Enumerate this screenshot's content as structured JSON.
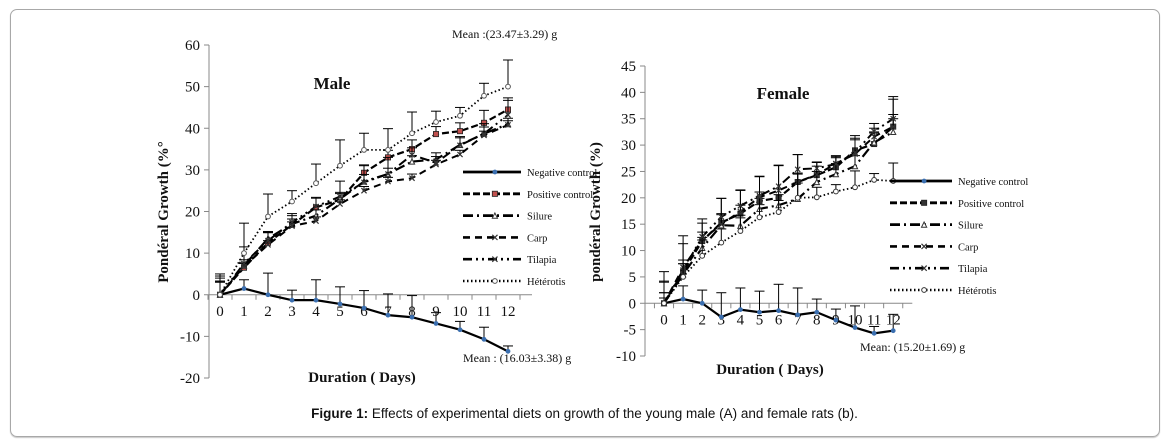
{
  "figure": {
    "caption_label": "Figure 1:",
    "caption_text": " Effects of experimental diets on growth of the young male (A) and female rats (b)."
  },
  "chart_data": [
    {
      "type": "line",
      "title": "Male",
      "xlabel": "Duration ( Days)",
      "ylabel": "Pondéral Growth  (%°",
      "x": [
        0,
        1,
        2,
        3,
        4,
        5,
        6,
        7,
        8,
        9,
        10,
        11,
        12
      ],
      "xticks": [
        "0",
        "1",
        "2",
        "3",
        "4",
        "5",
        "6",
        "7",
        "8",
        "9",
        "10",
        "11",
        "12"
      ],
      "ylim": [
        -20,
        60
      ],
      "yticks": [
        "60",
        "50",
        "40",
        "30",
        "20",
        "10",
        "0",
        "-10",
        "-20"
      ],
      "ytick_values": [
        60,
        50,
        40,
        30,
        20,
        10,
        0,
        -10,
        -20
      ],
      "legend_position": "right",
      "annotations": [
        "Mean :(23.47±3.29) g",
        "Mean : (16.03±3.38) g"
      ],
      "series": [
        {
          "name": "Negative control",
          "marker_color": "#3b6fb0",
          "values": [
            0,
            1.5,
            0,
            -1.3,
            -1.3,
            -2.2,
            -3.2,
            -4.9,
            -5.4,
            -6.9,
            -8.4,
            -10.7,
            -13.6
          ],
          "errors": [
            5,
            2.1,
            5.2,
            2.4,
            4.9,
            4.1,
            4.2,
            5.1,
            5.2,
            2.6,
            2,
            2.9,
            1.3
          ]
        },
        {
          "name": "Positive control",
          "marker_color": "#c0504d",
          "values": [
            0,
            6.5,
            12.5,
            16.8,
            21,
            22.8,
            29.3,
            33,
            35,
            38.6,
            39.3,
            41.3,
            44.5
          ],
          "errors": [
            4.5,
            1,
            2.5,
            2.2,
            2.2,
            1.8,
            1.9,
            1.7,
            2.2,
            1.8,
            2,
            3,
            2.2
          ]
        },
        {
          "name": "Silure",
          "marker_color": "#333333",
          "values": [
            0,
            7,
            13.5,
            17,
            19,
            23,
            27.2,
            29,
            32,
            32.5,
            36,
            38.7,
            41
          ],
          "errors": [
            3.2,
            1.4,
            1.4,
            1.2,
            1.4,
            1.3,
            1.7,
            1.4,
            1.4,
            1.6,
            1.7,
            1.6,
            1.4
          ]
        },
        {
          "name": "Carp",
          "marker_color": "#333333",
          "values": [
            0,
            6.8,
            12,
            16.5,
            17.7,
            21.8,
            25,
            27.2,
            28,
            31.3,
            33.7,
            38.3,
            40.8
          ],
          "errors": [
            3.3,
            1,
            1,
            1,
            1,
            1,
            1,
            1,
            1,
            1,
            1,
            1,
            1
          ]
        },
        {
          "name": "Tilapia",
          "marker_color": "#333333",
          "values": [
            0,
            7.5,
            13,
            17.4,
            21.2,
            23.6,
            27,
            29,
            33.6,
            31.7,
            35.9,
            38.7,
            43.2
          ],
          "errors": [
            4,
            4,
            2.2,
            2.1,
            2.2,
            3.7,
            4,
            4,
            1.7,
            1.5,
            2.1,
            2.4,
            4.1
          ]
        },
        {
          "name": "Hétérotis",
          "marker_color": "#555555",
          "values": [
            0,
            10,
            18.8,
            22.4,
            26.8,
            31,
            34.8,
            34.8,
            38.8,
            41.5,
            43,
            47.8,
            50
          ],
          "errors": [
            3,
            7.2,
            5.4,
            2.6,
            4.6,
            6.2,
            4,
            5.1,
            5.1,
            2.6,
            2,
            3,
            6.4
          ]
        }
      ]
    },
    {
      "type": "line",
      "title": "Female",
      "xlabel": "Duration ( Days)",
      "ylabel": "pondéral  Growth (%)",
      "x": [
        0,
        1,
        2,
        3,
        4,
        5,
        6,
        7,
        8,
        9,
        10,
        11,
        12
      ],
      "xticks": [
        "0",
        "1",
        "2",
        "3",
        "4",
        "5",
        "6",
        "7",
        "8",
        "9",
        "10",
        "11",
        "12"
      ],
      "ylim": [
        -10,
        45
      ],
      "yticks": [
        "45",
        "40",
        "35",
        "30",
        "25",
        "20",
        "15",
        "10",
        "5",
        "0",
        "-5",
        "-10"
      ],
      "ytick_values": [
        45,
        40,
        35,
        30,
        25,
        20,
        15,
        10,
        5,
        0,
        -5,
        -10
      ],
      "legend_position": "right",
      "annotations": [
        "Mean: (15.20±1.69) g"
      ],
      "series": [
        {
          "name": "Negative control",
          "marker_color": "#3b6fb0",
          "values": [
            0,
            0.8,
            0,
            -2.6,
            -1.2,
            -1.7,
            -1.4,
            -2.2,
            -1.7,
            -3.2,
            -4.6,
            -5.7,
            -5.2
          ],
          "errors": [
            6,
            2.5,
            2.5,
            4.6,
            4.1,
            4,
            5,
            5.1,
            2.5,
            2.1,
            4.1,
            1.3,
            3.1
          ]
        },
        {
          "name": "Positive control",
          "marker_color": "#333333",
          "values": [
            0,
            6,
            11.8,
            15.3,
            17,
            19.4,
            20,
            23,
            24.3,
            25.8,
            29,
            30.2,
            33.5
          ],
          "errors": [
            2,
            1.5,
            1.7,
            1.7,
            1.6,
            1.7,
            1.7,
            1.7,
            1.7,
            1.8,
            2,
            2.1,
            2.3
          ]
        },
        {
          "name": "Silure",
          "marker_color": "#333333",
          "values": [
            0,
            5.5,
            10.5,
            14.8,
            14.7,
            17.9,
            18.6,
            19.8,
            23,
            24.5,
            26,
            30.5,
            32.5
          ],
          "errors": [
            2,
            2,
            2,
            2,
            2,
            2,
            2,
            3,
            2,
            2,
            2,
            2,
            2.5
          ]
        },
        {
          "name": "Carp",
          "marker_color": "#333333",
          "values": [
            0,
            6.8,
            12,
            15,
            17.4,
            20.1,
            21.4,
            23,
            24.4,
            26.5,
            28.3,
            31.6,
            33.5
          ],
          "errors": [
            4.2,
            4.5,
            4,
            4.9,
            4,
            4,
            4.7,
            5.2,
            2.3,
            1.3,
            3,
            1.6,
            5.2
          ]
        },
        {
          "name": "Tilapia",
          "marker_color": "#333333",
          "values": [
            0,
            6.3,
            12.6,
            16.4,
            18.5,
            20.4,
            22.2,
            25.4,
            25.6,
            26.4,
            28.6,
            32.6,
            35
          ],
          "errors": [
            4,
            6.5,
            2.6,
            3.5,
            3,
            3.6,
            4,
            2.8,
            1.2,
            1.6,
            3.2,
            1.5,
            4.2
          ]
        },
        {
          "name": "Hétérotis",
          "marker_color": "#333333",
          "values": [
            0,
            5,
            9,
            11.5,
            13.7,
            16.3,
            17.3,
            20,
            20.1,
            21.2,
            22,
            23.4,
            23.2
          ],
          "errors": [
            1,
            3.2,
            3,
            2.6,
            2.5,
            2.4,
            2.2,
            4.5,
            1.9,
            1.3,
            3.1,
            1.2,
            3.4
          ]
        }
      ]
    }
  ]
}
